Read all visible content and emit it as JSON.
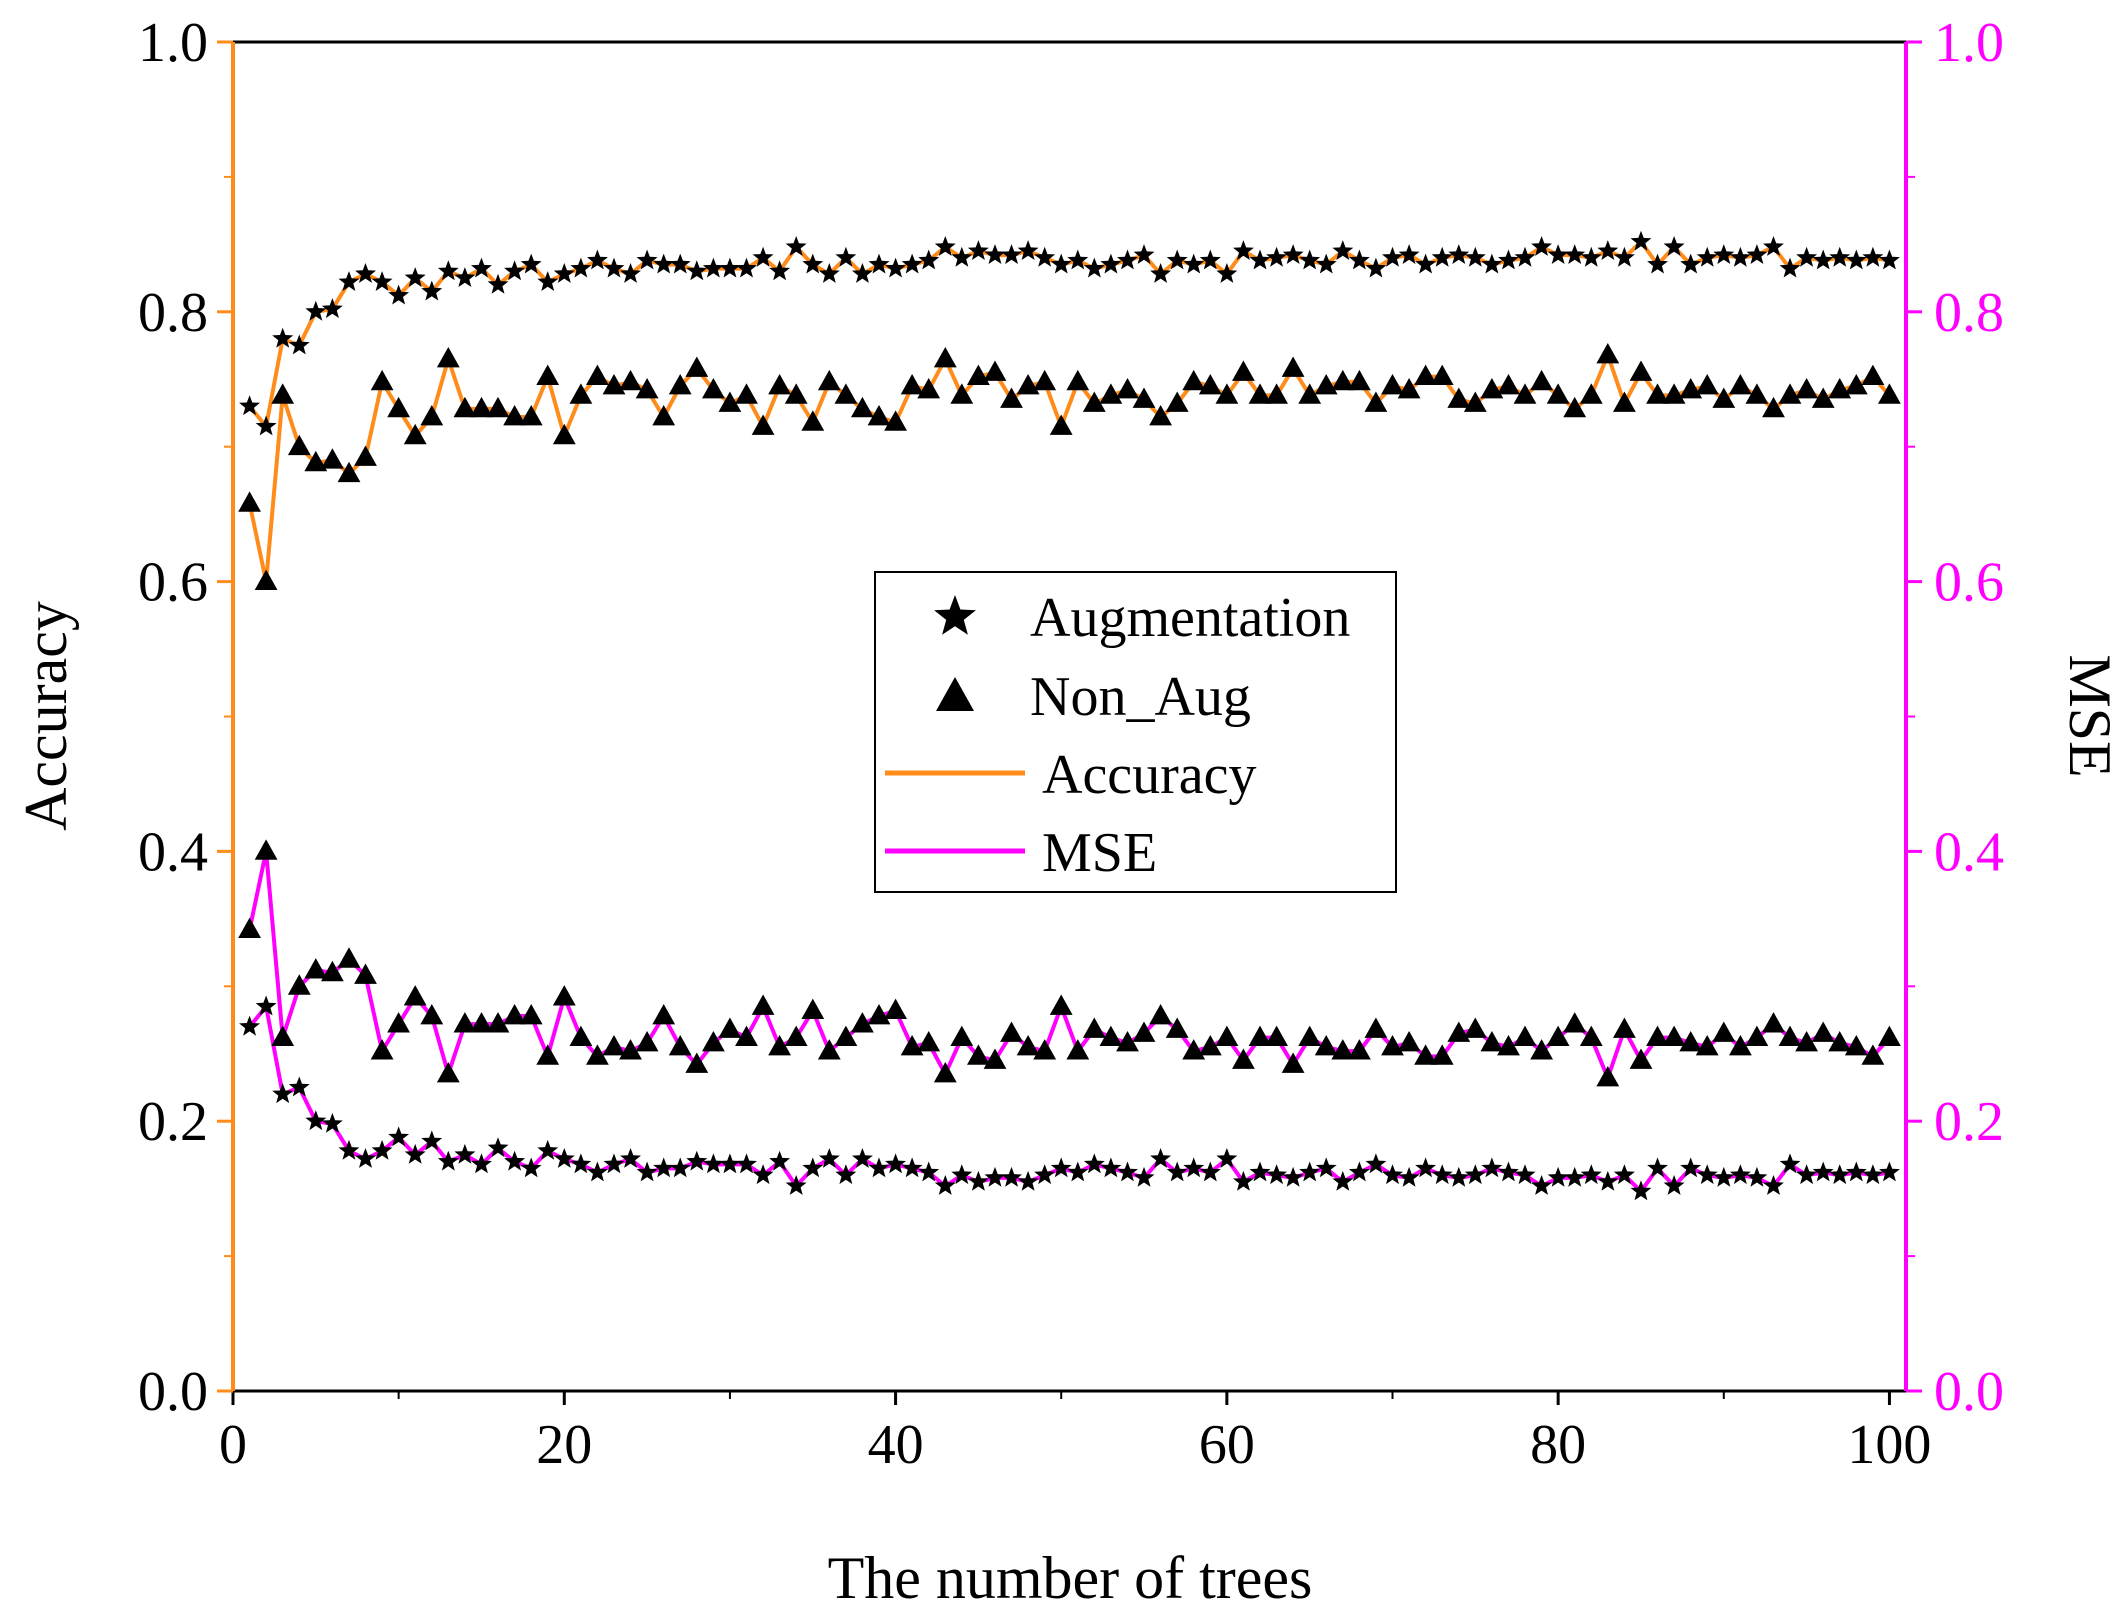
{
  "chart_data": {
    "type": "line",
    "xlabel": "The number of trees",
    "ylabel": "Accuracy",
    "y2label": "MSE",
    "xlim": [
      0,
      101
    ],
    "ylim": [
      0,
      1
    ],
    "y2lim": [
      0,
      1
    ],
    "xticks": [
      "0",
      "20",
      "40",
      "60",
      "80",
      "100"
    ],
    "yticks": [
      "0.0",
      "0.2",
      "0.4",
      "0.6",
      "0.8",
      "1.0"
    ],
    "y2ticks": [
      "0.0",
      "0.2",
      "0.4",
      "0.6",
      "0.8",
      "1.0"
    ],
    "legend_position": "center",
    "legend": [
      {
        "label": "Augmentation",
        "kind": "star-marker"
      },
      {
        "label": "Non_Aug",
        "kind": "triangle-marker"
      },
      {
        "label": "Accuracy",
        "kind": "line",
        "color": "#ff8c1a"
      },
      {
        "label": "MSE",
        "kind": "line",
        "color": "#ff00ff"
      }
    ],
    "colors": {
      "accuracy": "#ff8c1a",
      "mse": "#ff00ff",
      "marker": "#000000"
    },
    "series": [
      {
        "name": "Augmentation Accuracy",
        "axis": "left",
        "marker": "star",
        "line_color": "#ff8c1a",
        "values": [
          0.73,
          0.715,
          0.78,
          0.775,
          0.8,
          0.802,
          0.822,
          0.828,
          0.822,
          0.812,
          0.825,
          0.815,
          0.83,
          0.825,
          0.832,
          0.82,
          0.83,
          0.835,
          0.822,
          0.828,
          0.832,
          0.838,
          0.832,
          0.828,
          0.838,
          0.835,
          0.835,
          0.83,
          0.832,
          0.832,
          0.832,
          0.84,
          0.83,
          0.848,
          0.835,
          0.828,
          0.84,
          0.828,
          0.835,
          0.832,
          0.835,
          0.838,
          0.848,
          0.84,
          0.845,
          0.842,
          0.842,
          0.845,
          0.84,
          0.835,
          0.838,
          0.832,
          0.835,
          0.838,
          0.842,
          0.828,
          0.838,
          0.835,
          0.838,
          0.828,
          0.845,
          0.838,
          0.84,
          0.842,
          0.838,
          0.835,
          0.845,
          0.838,
          0.832,
          0.84,
          0.842,
          0.835,
          0.84,
          0.842,
          0.84,
          0.835,
          0.838,
          0.84,
          0.848,
          0.842,
          0.842,
          0.84,
          0.845,
          0.84,
          0.852,
          0.835,
          0.848,
          0.835,
          0.84,
          0.842,
          0.84,
          0.842,
          0.848,
          0.832,
          0.84,
          0.838,
          0.84,
          0.838,
          0.84,
          0.838
        ]
      },
      {
        "name": "Non_Aug Accuracy",
        "axis": "left",
        "marker": "triangle",
        "line_color": "#ff8c1a",
        "values": [
          0.658,
          0.6,
          0.738,
          0.7,
          0.688,
          0.69,
          0.68,
          0.692,
          0.748,
          0.728,
          0.708,
          0.722,
          0.765,
          0.728,
          0.728,
          0.728,
          0.722,
          0.722,
          0.752,
          0.708,
          0.738,
          0.752,
          0.745,
          0.748,
          0.742,
          0.722,
          0.745,
          0.758,
          0.742,
          0.732,
          0.738,
          0.715,
          0.745,
          0.738,
          0.718,
          0.748,
          0.738,
          0.728,
          0.722,
          0.718,
          0.745,
          0.742,
          0.765,
          0.738,
          0.752,
          0.755,
          0.735,
          0.745,
          0.748,
          0.715,
          0.748,
          0.732,
          0.738,
          0.742,
          0.735,
          0.722,
          0.732,
          0.748,
          0.745,
          0.738,
          0.755,
          0.738,
          0.738,
          0.758,
          0.738,
          0.745,
          0.748,
          0.748,
          0.732,
          0.745,
          0.742,
          0.752,
          0.752,
          0.735,
          0.732,
          0.742,
          0.745,
          0.738,
          0.748,
          0.738,
          0.728,
          0.738,
          0.768,
          0.732,
          0.755,
          0.738,
          0.738,
          0.742,
          0.745,
          0.735,
          0.745,
          0.738,
          0.728,
          0.738,
          0.742,
          0.735,
          0.742,
          0.745,
          0.752,
          0.738
        ]
      },
      {
        "name": "Augmentation MSE",
        "axis": "right",
        "marker": "star",
        "line_color": "#ff00ff",
        "values": [
          0.27,
          0.285,
          0.22,
          0.225,
          0.2,
          0.198,
          0.178,
          0.172,
          0.178,
          0.188,
          0.175,
          0.185,
          0.17,
          0.175,
          0.168,
          0.18,
          0.17,
          0.165,
          0.178,
          0.172,
          0.168,
          0.162,
          0.168,
          0.172,
          0.162,
          0.165,
          0.165,
          0.17,
          0.168,
          0.168,
          0.168,
          0.16,
          0.17,
          0.152,
          0.165,
          0.172,
          0.16,
          0.172,
          0.165,
          0.168,
          0.165,
          0.162,
          0.152,
          0.16,
          0.155,
          0.158,
          0.158,
          0.155,
          0.16,
          0.165,
          0.162,
          0.168,
          0.165,
          0.162,
          0.158,
          0.172,
          0.162,
          0.165,
          0.162,
          0.172,
          0.155,
          0.162,
          0.16,
          0.158,
          0.162,
          0.165,
          0.155,
          0.162,
          0.168,
          0.16,
          0.158,
          0.165,
          0.16,
          0.158,
          0.16,
          0.165,
          0.162,
          0.16,
          0.152,
          0.158,
          0.158,
          0.16,
          0.155,
          0.16,
          0.148,
          0.165,
          0.152,
          0.165,
          0.16,
          0.158,
          0.16,
          0.158,
          0.152,
          0.168,
          0.16,
          0.162,
          0.16,
          0.162,
          0.16,
          0.162
        ]
      },
      {
        "name": "Non_Aug MSE",
        "axis": "right",
        "marker": "triangle",
        "line_color": "#ff00ff",
        "values": [
          0.342,
          0.4,
          0.262,
          0.3,
          0.312,
          0.31,
          0.32,
          0.308,
          0.252,
          0.272,
          0.292,
          0.278,
          0.235,
          0.272,
          0.272,
          0.272,
          0.278,
          0.278,
          0.248,
          0.292,
          0.262,
          0.248,
          0.255,
          0.252,
          0.258,
          0.278,
          0.255,
          0.242,
          0.258,
          0.268,
          0.262,
          0.285,
          0.255,
          0.262,
          0.282,
          0.252,
          0.262,
          0.272,
          0.278,
          0.282,
          0.255,
          0.258,
          0.235,
          0.262,
          0.248,
          0.245,
          0.265,
          0.255,
          0.252,
          0.285,
          0.252,
          0.268,
          0.262,
          0.258,
          0.265,
          0.278,
          0.268,
          0.252,
          0.255,
          0.262,
          0.245,
          0.262,
          0.262,
          0.242,
          0.262,
          0.255,
          0.252,
          0.252,
          0.268,
          0.255,
          0.258,
          0.248,
          0.248,
          0.265,
          0.268,
          0.258,
          0.255,
          0.262,
          0.252,
          0.262,
          0.272,
          0.262,
          0.232,
          0.268,
          0.245,
          0.262,
          0.262,
          0.258,
          0.255,
          0.265,
          0.255,
          0.262,
          0.272,
          0.262,
          0.258,
          0.265,
          0.258,
          0.255,
          0.248,
          0.262
        ]
      }
    ]
  }
}
